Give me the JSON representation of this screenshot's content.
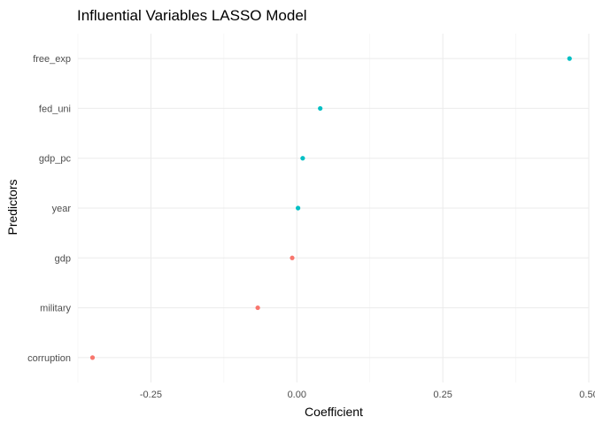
{
  "chart_data": {
    "type": "scatter",
    "title": "Influential Variables LASSO Model",
    "xlabel": "Coefficient",
    "ylabel": "Predictors",
    "xlim": [
      -0.375,
      0.5
    ],
    "x_ticks": [
      -0.25,
      0.0,
      0.25,
      0.5
    ],
    "x_tick_labels": [
      "-0.25",
      "0.00",
      "0.25",
      "0.50"
    ],
    "categories": [
      "free_exp",
      "fed_uni",
      "gdp_pc",
      "year",
      "gdp",
      "military",
      "corruption"
    ],
    "values": [
      0.467,
      0.04,
      0.01,
      0.002,
      -0.008,
      -0.067,
      -0.35
    ],
    "point_colors": [
      "#00bfc4",
      "#00bfc4",
      "#00bfc4",
      "#00bfc4",
      "#f8766d",
      "#f8766d",
      "#f8766d"
    ],
    "grid": true,
    "legend": "none"
  }
}
